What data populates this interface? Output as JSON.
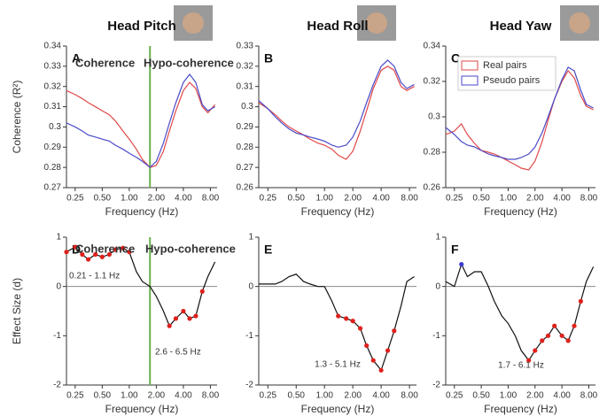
{
  "chart_data": [
    {
      "type": "line",
      "title": "Head Pitch",
      "label": "A",
      "xscale": "log",
      "xlabel": "Frequency (Hz)",
      "ylabel": "Coherence (R²)",
      "x": [
        0.2,
        0.25,
        0.3,
        0.35,
        0.42,
        0.5,
        0.6,
        0.7,
        0.85,
        1.0,
        1.2,
        1.4,
        1.7,
        2.0,
        2.4,
        2.8,
        3.3,
        4.0,
        4.7,
        5.5,
        6.5,
        7.5,
        9
      ],
      "series": [
        {
          "color": "#e04848",
          "values": [
            0.318,
            0.316,
            0.314,
            0.312,
            0.31,
            0.308,
            0.306,
            0.303,
            0.298,
            0.294,
            0.289,
            0.284,
            0.28,
            0.281,
            0.288,
            0.298,
            0.308,
            0.318,
            0.322,
            0.319,
            0.31,
            0.307,
            0.311
          ]
        },
        {
          "color": "#4a4ac8",
          "values": [
            0.302,
            0.3,
            0.298,
            0.296,
            0.295,
            0.294,
            0.293,
            0.291,
            0.289,
            0.287,
            0.285,
            0.283,
            0.28,
            0.283,
            0.292,
            0.302,
            0.312,
            0.322,
            0.326,
            0.322,
            0.311,
            0.308,
            0.31
          ]
        }
      ],
      "xlim": [
        0.2,
        9.5
      ],
      "ylim": [
        0.27,
        0.34
      ],
      "xticks": [
        {
          "value": 0.25,
          "label": "0.25"
        },
        {
          "value": 0.5,
          "label": "0.50"
        },
        {
          "value": 1,
          "label": "1.00"
        },
        {
          "value": 2,
          "label": "2.00"
        },
        {
          "value": 4,
          "label": "4.00"
        },
        {
          "value": 8,
          "label": "8.00"
        }
      ],
      "yticks": [
        0.27,
        0.28,
        0.29,
        0.3,
        0.31,
        0.32,
        0.33,
        0.34
      ],
      "divider": 1.7,
      "divider_color": "#6ab04c",
      "annotations": [
        {
          "text": "Coherence",
          "color": "#6ab04c"
        },
        {
          "text": "Hypo-coherence",
          "color": "#6ab04c"
        }
      ]
    },
    {
      "type": "line",
      "title": "Head Roll",
      "label": "B",
      "xscale": "log",
      "xlabel": "Frequency (Hz)",
      "x": [
        0.2,
        0.25,
        0.3,
        0.35,
        0.42,
        0.5,
        0.6,
        0.7,
        0.85,
        1.0,
        1.2,
        1.4,
        1.7,
        2.0,
        2.4,
        2.8,
        3.3,
        4.0,
        4.7,
        5.5,
        6.5,
        7.5,
        9
      ],
      "series": [
        {
          "color": "#e04848",
          "values": [
            0.302,
            0.299,
            0.296,
            0.293,
            0.29,
            0.288,
            0.286,
            0.284,
            0.282,
            0.281,
            0.279,
            0.276,
            0.274,
            0.278,
            0.288,
            0.298,
            0.309,
            0.318,
            0.32,
            0.318,
            0.31,
            0.308,
            0.31
          ]
        },
        {
          "color": "#4a4ac8",
          "values": [
            0.303,
            0.299,
            0.295,
            0.292,
            0.289,
            0.287,
            0.286,
            0.285,
            0.284,
            0.283,
            0.281,
            0.28,
            0.281,
            0.285,
            0.293,
            0.302,
            0.311,
            0.32,
            0.323,
            0.32,
            0.312,
            0.309,
            0.311
          ]
        }
      ],
      "xlim": [
        0.2,
        9.5
      ],
      "ylim": [
        0.26,
        0.33
      ],
      "xticks": [
        {
          "value": 0.25,
          "label": "0.25"
        },
        {
          "value": 0.5,
          "label": "0.50"
        },
        {
          "value": 1,
          "label": "1.00"
        },
        {
          "value": 2,
          "label": "2.00"
        },
        {
          "value": 4,
          "label": "4.00"
        },
        {
          "value": 8,
          "label": "8.00"
        }
      ],
      "yticks": [
        0.26,
        0.27,
        0.28,
        0.29,
        0.3,
        0.31,
        0.32,
        0.33
      ]
    },
    {
      "type": "line",
      "title": "Head Yaw",
      "label": "C",
      "xscale": "log",
      "xlabel": "Frequency (Hz)",
      "legend": "upper-left",
      "x": [
        0.2,
        0.25,
        0.3,
        0.35,
        0.42,
        0.5,
        0.6,
        0.7,
        0.85,
        1.0,
        1.2,
        1.4,
        1.7,
        2.0,
        2.4,
        2.8,
        3.3,
        4.0,
        4.7,
        5.5,
        6.5,
        7.5,
        9
      ],
      "series": [
        {
          "name": "Real pairs",
          "color": "#e04848",
          "values": [
            0.29,
            0.292,
            0.296,
            0.29,
            0.285,
            0.281,
            0.28,
            0.279,
            0.277,
            0.275,
            0.273,
            0.271,
            0.27,
            0.275,
            0.286,
            0.298,
            0.31,
            0.32,
            0.326,
            0.322,
            0.312,
            0.306,
            0.304
          ]
        },
        {
          "name": "Pseudo pairs",
          "color": "#4a4ac8",
          "values": [
            0.294,
            0.29,
            0.286,
            0.284,
            0.283,
            0.281,
            0.279,
            0.278,
            0.277,
            0.276,
            0.276,
            0.277,
            0.279,
            0.283,
            0.291,
            0.3,
            0.31,
            0.321,
            0.328,
            0.326,
            0.315,
            0.307,
            0.305
          ]
        }
      ],
      "xlim": [
        0.2,
        9.5
      ],
      "ylim": [
        0.26,
        0.34
      ],
      "xticks": [
        {
          "value": 0.25,
          "label": "0.25"
        },
        {
          "value": 0.5,
          "label": "0.50"
        },
        {
          "value": 1,
          "label": "1.00"
        },
        {
          "value": 2,
          "label": "2.00"
        },
        {
          "value": 4,
          "label": "4.00"
        },
        {
          "value": 8,
          "label": "8.00"
        }
      ],
      "yticks": [
        0.26,
        0.28,
        0.3,
        0.32,
        0.34
      ]
    },
    {
      "type": "line",
      "label": "D",
      "xscale": "log",
      "xlabel": "Frequency (Hz)",
      "ylabel": "Effect Size (d)",
      "zero_line": true,
      "x": [
        0.2,
        0.25,
        0.3,
        0.35,
        0.42,
        0.5,
        0.6,
        0.7,
        0.85,
        1.0,
        1.2,
        1.4,
        1.7,
        2.0,
        2.4,
        2.8,
        3.3,
        4.0,
        4.7,
        5.5,
        6.5,
        7.5,
        9
      ],
      "series": [
        {
          "color": "#111111",
          "values": [
            0.7,
            0.8,
            0.65,
            0.55,
            0.65,
            0.6,
            0.65,
            0.75,
            0.78,
            0.7,
            0.3,
            0.1,
            0.0,
            -0.2,
            -0.5,
            -0.8,
            -0.65,
            -0.5,
            -0.65,
            -0.6,
            -0.1,
            0.2,
            0.5
          ],
          "marker_colors": [
            "#e0201b",
            "#e0201b",
            "#e0201b",
            "#e0201b",
            "#e0201b",
            "#e0201b",
            "#e0201b",
            "#e0201b",
            "#e0201b",
            "#e0201b",
            null,
            null,
            null,
            null,
            null,
            "#e0201b",
            "#e0201b",
            "#e0201b",
            "#e0201b",
            "#e0201b",
            "#e0201b",
            null,
            null
          ]
        }
      ],
      "xlim": [
        0.2,
        9.5
      ],
      "ylim": [
        -2,
        1
      ],
      "xticks": [
        {
          "value": 0.25,
          "label": "0.25"
        },
        {
          "value": 0.5,
          "label": "0.50"
        },
        {
          "value": 1,
          "label": "1.00"
        },
        {
          "value": 2,
          "label": "2.00"
        },
        {
          "value": 4,
          "label": "4.00"
        },
        {
          "value": 8,
          "label": "8.00"
        }
      ],
      "yticks": [
        -2,
        -1,
        0,
        1
      ],
      "divider": 1.7,
      "divider_color": "#6ab04c",
      "annotations": [
        {
          "text": "Coherence",
          "color": "#6ab04c"
        },
        {
          "text": "Hypo-coherence",
          "color": "#6ab04c"
        },
        {
          "text": "0.21 - 1.1 Hz",
          "color": "#222222"
        },
        {
          "text": "2.6 - 6.5 Hz",
          "color": "#222222"
        }
      ]
    },
    {
      "type": "line",
      "label": "E",
      "xscale": "log",
      "xlabel": "Frequency (Hz)",
      "zero_line": true,
      "x": [
        0.2,
        0.25,
        0.3,
        0.35,
        0.42,
        0.5,
        0.6,
        0.7,
        0.85,
        1.0,
        1.2,
        1.4,
        1.7,
        2.0,
        2.4,
        2.8,
        3.3,
        4.0,
        4.7,
        5.5,
        6.5,
        7.5,
        9
      ],
      "series": [
        {
          "color": "#111111",
          "values": [
            0.05,
            0.05,
            0.05,
            0.1,
            0.2,
            0.25,
            0.1,
            0.05,
            0.0,
            0.0,
            -0.3,
            -0.6,
            -0.65,
            -0.7,
            -0.85,
            -1.2,
            -1.5,
            -1.7,
            -1.3,
            -0.9,
            -0.4,
            0.1,
            0.2
          ],
          "marker_colors": [
            null,
            null,
            null,
            null,
            null,
            null,
            null,
            null,
            null,
            null,
            null,
            "#e0201b",
            "#e0201b",
            "#e0201b",
            "#e0201b",
            "#e0201b",
            "#e0201b",
            "#e0201b",
            "#e0201b",
            "#e0201b",
            null,
            null,
            null
          ]
        }
      ],
      "xlim": [
        0.2,
        9.5
      ],
      "ylim": [
        -2,
        1
      ],
      "xticks": [
        {
          "value": 0.25,
          "label": "0.25"
        },
        {
          "value": 0.5,
          "label": "0.50"
        },
        {
          "value": 1,
          "label": "1.00"
        },
        {
          "value": 2,
          "label": "2.00"
        },
        {
          "value": 4,
          "label": "4.00"
        },
        {
          "value": 8,
          "label": "8.00"
        }
      ],
      "yticks": [
        -2,
        -1,
        0,
        1
      ],
      "annotations": [
        {
          "text": "1.3 - 5.1 Hz",
          "color": "#222222"
        }
      ]
    },
    {
      "type": "line",
      "label": "F",
      "xscale": "log",
      "xlabel": "Frequency (Hz)",
      "zero_line": true,
      "x": [
        0.2,
        0.25,
        0.3,
        0.35,
        0.42,
        0.5,
        0.6,
        0.7,
        0.85,
        1.0,
        1.2,
        1.4,
        1.7,
        2.0,
        2.4,
        2.8,
        3.3,
        4.0,
        4.7,
        5.5,
        6.5,
        7.5,
        9
      ],
      "series": [
        {
          "color": "#111111",
          "values": [
            0.1,
            0.0,
            0.45,
            0.2,
            0.3,
            0.3,
            0.0,
            -0.3,
            -0.6,
            -0.75,
            -1.0,
            -1.3,
            -1.5,
            -1.3,
            -1.1,
            -1.0,
            -0.8,
            -1.0,
            -1.1,
            -0.8,
            -0.3,
            0.1,
            0.4
          ],
          "marker_colors": [
            null,
            null,
            "#3a3ad0",
            null,
            null,
            null,
            null,
            null,
            null,
            null,
            null,
            null,
            "#e0201b",
            "#e0201b",
            "#e0201b",
            "#e0201b",
            "#e0201b",
            "#e0201b",
            "#e0201b",
            "#e0201b",
            "#e0201b",
            null,
            null
          ]
        }
      ],
      "xlim": [
        0.2,
        9.5
      ],
      "ylim": [
        -2,
        1
      ],
      "xticks": [
        {
          "value": 0.25,
          "label": "0.25"
        },
        {
          "value": 0.5,
          "label": "0.50"
        },
        {
          "value": 1,
          "label": "1.00"
        },
        {
          "value": 2,
          "label": "2.00"
        },
        {
          "value": 4,
          "label": "4.00"
        },
        {
          "value": 8,
          "label": "8.00"
        }
      ],
      "yticks": [
        -2,
        -1,
        0,
        1
      ],
      "annotations": [
        {
          "text": "1.7 - 6.1 Hz",
          "color": "#222222"
        }
      ]
    }
  ]
}
